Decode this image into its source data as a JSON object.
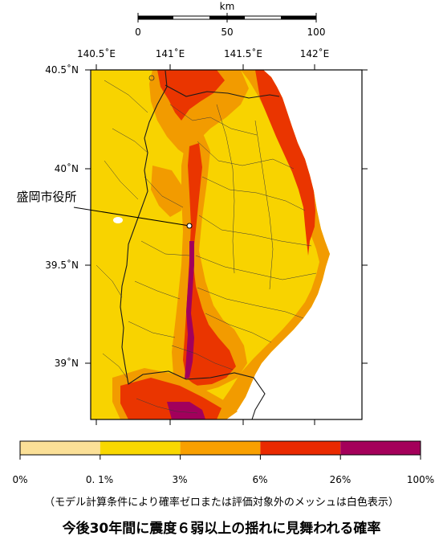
{
  "scale_bar": {
    "unit": "km",
    "labels": [
      "0",
      "50",
      "100"
    ]
  },
  "longitude_labels": [
    "140.5˚E",
    "141˚E",
    "141.5˚E",
    "142˚E"
  ],
  "latitude_labels": [
    "40.5˚N",
    "40˚N",
    "39.5˚N",
    "39˚N"
  ],
  "city_label": "盛岡市役所",
  "legend": {
    "colors": [
      "#fbe097",
      "#f9d800",
      "#f9a000",
      "#f35b00",
      "#ea2a00",
      "#a4005a"
    ],
    "tick_labels": [
      "0%",
      "0. 1%",
      "3%",
      "6%",
      "26%",
      "100%"
    ]
  },
  "map_colors": {
    "sea": "#ffffff",
    "land_base": "#f8d300",
    "orange": "#f29b00",
    "red": "#ea3500",
    "purple": "#a2005c"
  },
  "note": "（モデル計算条件により確率ゼロまたは評価対象外のメッシュは白色表示）",
  "title": "今後30年間に震度６弱以上の揺れに見舞われる確率"
}
